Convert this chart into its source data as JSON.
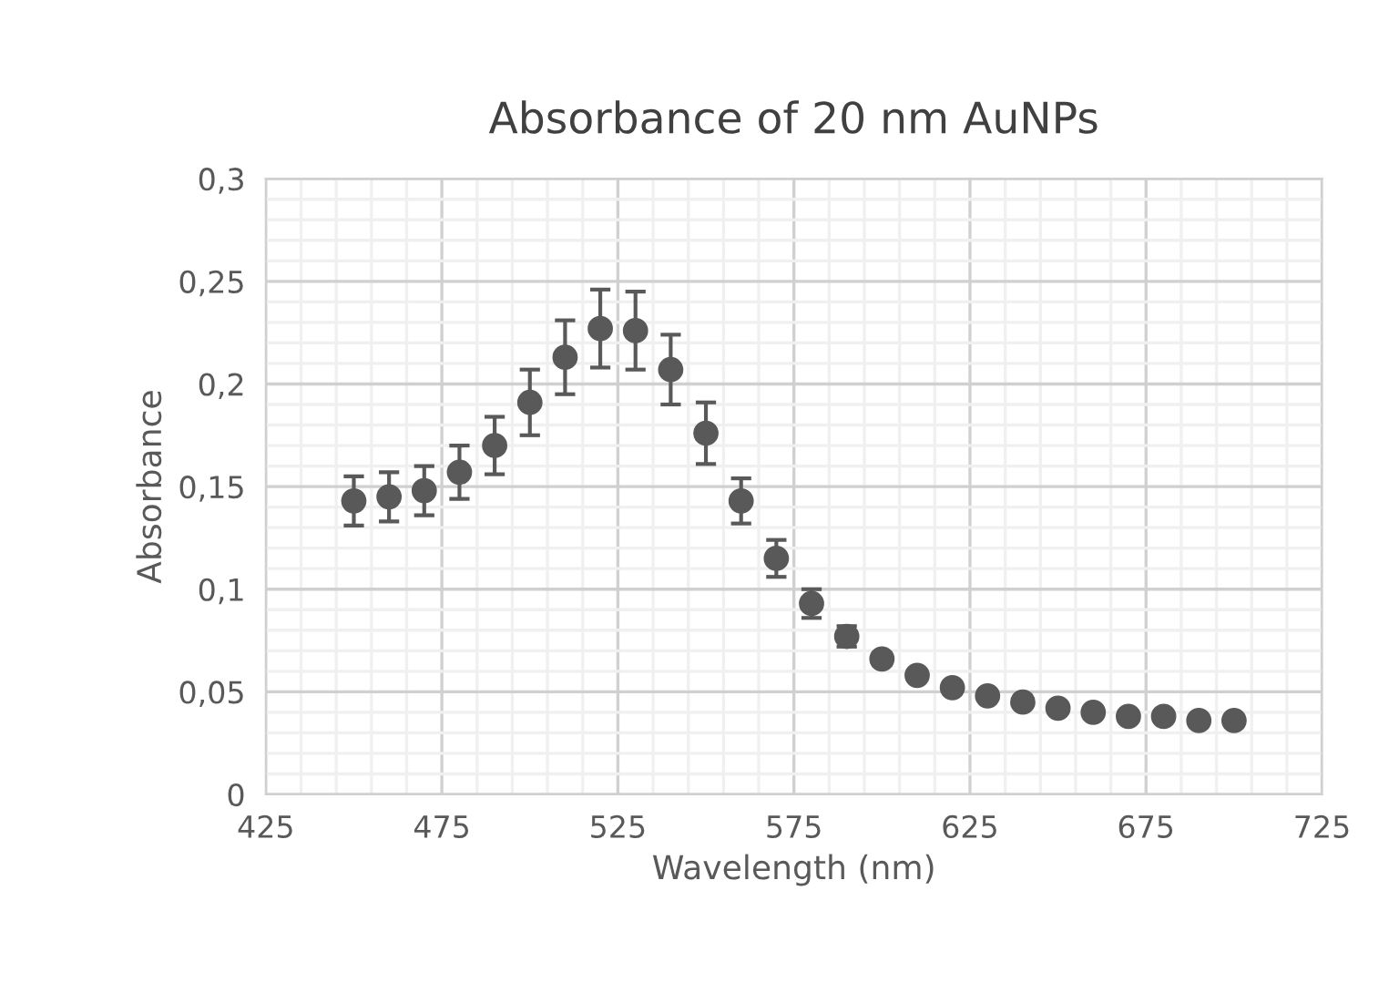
{
  "chart_data": {
    "type": "scatter",
    "title": "Absorbance of 20 nm AuNPs",
    "xlabel": "Wavelength (nm)",
    "ylabel": "Absorbance",
    "x": [
      450,
      460,
      470,
      480,
      490,
      500,
      510,
      520,
      530,
      540,
      550,
      560,
      570,
      580,
      590,
      600,
      610,
      620,
      630,
      640,
      650,
      660,
      670,
      680,
      690,
      700
    ],
    "series": [
      {
        "color": "#595959",
        "values": [
          0.143,
          0.145,
          0.148,
          0.157,
          0.17,
          0.191,
          0.213,
          0.227,
          0.226,
          0.207,
          0.176,
          0.143,
          0.115,
          0.093,
          0.077,
          0.066,
          0.058,
          0.052,
          0.048,
          0.045,
          0.042,
          0.04,
          0.038,
          0.038,
          0.036,
          0.036
        ],
        "errors": [
          0.012,
          0.012,
          0.012,
          0.013,
          0.014,
          0.016,
          0.018,
          0.019,
          0.019,
          0.017,
          0.015,
          0.011,
          0.009,
          0.007,
          0.005,
          0.003,
          0.002,
          null,
          null,
          null,
          null,
          null,
          null,
          null,
          null,
          null
        ]
      }
    ],
    "xlim": [
      425,
      725
    ],
    "xticks": [
      425,
      475,
      525,
      575,
      625,
      675,
      725
    ],
    "ylim": [
      0,
      0.3
    ],
    "yticks": [
      0,
      {
        "value": 0.05,
        "label": "0,05"
      },
      {
        "value": 0.1,
        "label": "0,1"
      },
      {
        "value": 0.15,
        "label": "0,15"
      },
      {
        "value": 0.2,
        "label": "0,2"
      },
      {
        "value": 0.25,
        "label": "0,25"
      },
      {
        "value": 0.3,
        "label": "0,3"
      }
    ],
    "grid": true,
    "marker": "circle",
    "legend": false
  }
}
